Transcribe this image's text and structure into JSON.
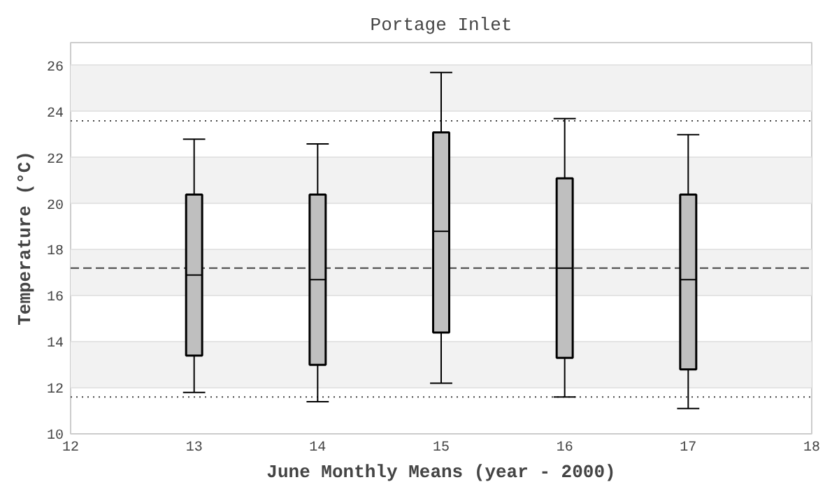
{
  "chart_data": {
    "type": "box",
    "title": "Portage Inlet",
    "xlabel": "June Monthly Means (year - 2000)",
    "ylabel": "Temperature (°C)",
    "x": [
      13,
      14,
      15,
      16,
      17
    ],
    "boxes": [
      {
        "low": 11.8,
        "q1": 13.4,
        "median": 16.9,
        "q3": 20.4,
        "high": 22.8
      },
      {
        "low": 11.4,
        "q1": 13.0,
        "median": 16.7,
        "q3": 20.4,
        "high": 22.6
      },
      {
        "low": 12.2,
        "q1": 14.4,
        "median": 18.8,
        "q3": 23.1,
        "high": 25.7
      },
      {
        "low": 11.6,
        "q1": 13.3,
        "median": 17.2,
        "q3": 21.1,
        "high": 23.7
      },
      {
        "low": 11.1,
        "q1": 12.8,
        "median": 16.7,
        "q3": 20.4,
        "high": 23.0
      }
    ],
    "color": "#bfbfbf",
    "xlim": [
      12,
      18
    ],
    "xticks": [
      12,
      13,
      14,
      15,
      16,
      17,
      18
    ],
    "ylim": [
      10,
      27
    ],
    "yticks": [
      10,
      12,
      14,
      16,
      18,
      20,
      22,
      24,
      26
    ],
    "grid": "y",
    "ref_lines": [
      {
        "axis": "y",
        "value": 23.6,
        "line_style": "dotted"
      },
      {
        "axis": "y",
        "value": 17.2,
        "line_style": "dashed"
      },
      {
        "axis": "y",
        "value": 11.6,
        "line_style": "dotted"
      }
    ]
  }
}
